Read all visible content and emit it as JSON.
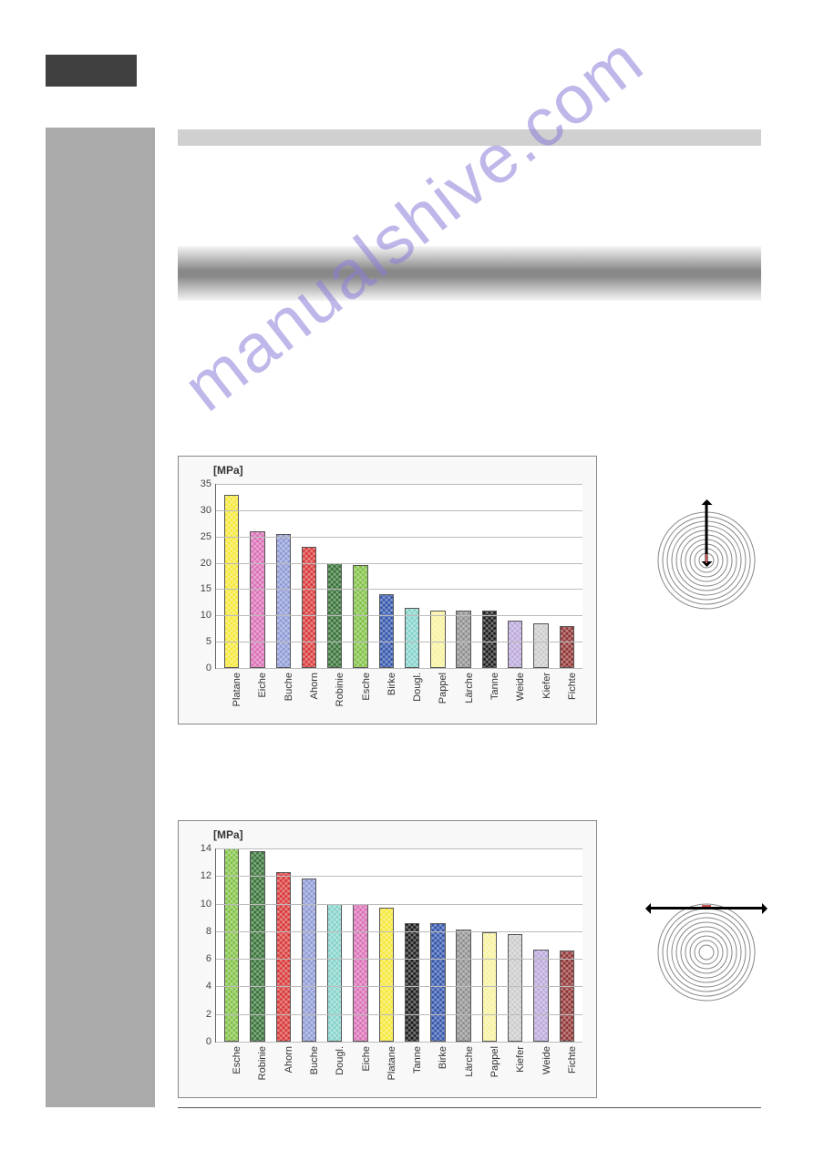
{
  "watermark_text": "manualshive.com",
  "chart1": {
    "type": "bar",
    "ylabel": "[MPa]",
    "ylim": [
      0,
      35
    ],
    "ytick_step": 5,
    "background_color": "#ffffff",
    "grid_color": "#bbbbbb",
    "border_color": "#888888",
    "label_fontsize": 11,
    "bars": [
      {
        "label": "Platane",
        "value": 33,
        "color": "#f5e730"
      },
      {
        "label": "Eiche",
        "value": 26,
        "color": "#d968b3"
      },
      {
        "label": "Buche",
        "value": 25.5,
        "color": "#8a95d4"
      },
      {
        "label": "Ahorn",
        "value": 23,
        "color": "#d72f2f"
      },
      {
        "label": "Robinie",
        "value": 20,
        "color": "#2c6b2c"
      },
      {
        "label": "Esche",
        "value": 19.5,
        "color": "#7bbf3c"
      },
      {
        "label": "Birke",
        "value": 14,
        "color": "#2a4da8"
      },
      {
        "label": "Dougl.",
        "value": 11.5,
        "color": "#7fd1c8"
      },
      {
        "label": "Pappel",
        "value": 11,
        "color": "#f7f29b"
      },
      {
        "label": "Lärche",
        "value": 11,
        "color": "#8a8a8a"
      },
      {
        "label": "Tanne",
        "value": 11,
        "color": "#111111"
      },
      {
        "label": "Weide",
        "value": 9,
        "color": "#b8a4d9"
      },
      {
        "label": "Kiefer",
        "value": 8.5,
        "color": "#c9c9c9"
      },
      {
        "label": "Fichte",
        "value": 8,
        "color": "#8b2a2a"
      }
    ]
  },
  "chart2": {
    "type": "bar",
    "ylabel": "[MPa]",
    "ylim": [
      0,
      14
    ],
    "ytick_step": 2,
    "background_color": "#ffffff",
    "grid_color": "#bbbbbb",
    "border_color": "#888888",
    "label_fontsize": 11,
    "bars": [
      {
        "label": "Esche",
        "value": 14,
        "color": "#7bbf3c"
      },
      {
        "label": "Robinie",
        "value": 13.8,
        "color": "#2c6b2c"
      },
      {
        "label": "Ahorn",
        "value": 12.3,
        "color": "#d72f2f"
      },
      {
        "label": "Buche",
        "value": 11.8,
        "color": "#8a95d4"
      },
      {
        "label": "Dougl.",
        "value": 10,
        "color": "#7fd1c8"
      },
      {
        "label": "Eiche",
        "value": 10,
        "color": "#d968b3"
      },
      {
        "label": "Platane",
        "value": 9.7,
        "color": "#f5e730"
      },
      {
        "label": "Tanne",
        "value": 8.6,
        "color": "#111111"
      },
      {
        "label": "Birke",
        "value": 8.6,
        "color": "#2a4da8"
      },
      {
        "label": "Lärche",
        "value": 8.1,
        "color": "#8a8a8a"
      },
      {
        "label": "Pappel",
        "value": 7.9,
        "color": "#f7f29b"
      },
      {
        "label": "Kiefer",
        "value": 7.8,
        "color": "#c9c9c9"
      },
      {
        "label": "Weide",
        "value": 6.7,
        "color": "#b8a4d9"
      },
      {
        "label": "Fichte",
        "value": 6.6,
        "color": "#8b2a2a"
      }
    ]
  },
  "diagram1": {
    "orientation": "radial",
    "ring_count": 10
  },
  "diagram2": {
    "orientation": "tangential",
    "ring_count": 10
  }
}
